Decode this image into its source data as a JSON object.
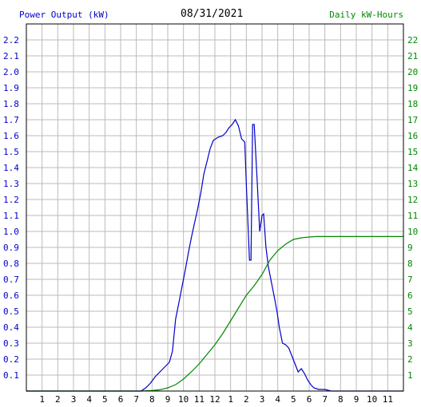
{
  "header": {
    "left_title": "Power Output (kW)",
    "date": "08/31/2021",
    "right_title": "Daily kW-Hours"
  },
  "colors": {
    "power_series": "#0000cc",
    "energy_series": "#008800",
    "grid": "#bbbbbb",
    "axis": "#000000"
  },
  "chart_data": {
    "type": "line",
    "x_axis": {
      "range": [
        0,
        24
      ],
      "tick_labels": [
        "1",
        "2",
        "3",
        "4",
        "5",
        "6",
        "7",
        "8",
        "9",
        "10",
        "11",
        "12",
        "1",
        "2",
        "3",
        "4",
        "5",
        "6",
        "7",
        "8",
        "9",
        "10",
        "11"
      ]
    },
    "y_left": {
      "label": "Power Output (kW)",
      "range": [
        0,
        2.3
      ],
      "tick_labels": [
        "0.1",
        "0.2",
        "0.3",
        "0.4",
        "0.5",
        "0.6",
        "0.7",
        "0.8",
        "0.9",
        "1.0",
        "1.1",
        "1.2",
        "1.3",
        "1.4",
        "1.5",
        "1.6",
        "1.7",
        "1.8",
        "1.9",
        "2.0",
        "2.1",
        "2.2"
      ]
    },
    "y_right": {
      "label": "Daily kW-Hours",
      "range": [
        0,
        23
      ],
      "tick_labels": [
        "1",
        "2",
        "3",
        "4",
        "5",
        "6",
        "7",
        "8",
        "9",
        "10",
        "11",
        "12",
        "13",
        "14",
        "15",
        "16",
        "17",
        "18",
        "19",
        "20",
        "21",
        "22"
      ]
    },
    "grid": true,
    "series": [
      {
        "name": "Power Output (kW)",
        "axis": "left",
        "points": [
          [
            0,
            0
          ],
          [
            7.3,
            0
          ],
          [
            7.6,
            0.02
          ],
          [
            7.9,
            0.05
          ],
          [
            8.2,
            0.09
          ],
          [
            8.5,
            0.12
          ],
          [
            8.8,
            0.15
          ],
          [
            9.1,
            0.18
          ],
          [
            9.3,
            0.25
          ],
          [
            9.5,
            0.45
          ],
          [
            9.7,
            0.55
          ],
          [
            9.9,
            0.65
          ],
          [
            10.1,
            0.75
          ],
          [
            10.3,
            0.86
          ],
          [
            10.5,
            0.96
          ],
          [
            10.7,
            1.05
          ],
          [
            10.9,
            1.14
          ],
          [
            11.1,
            1.24
          ],
          [
            11.3,
            1.36
          ],
          [
            11.5,
            1.44
          ],
          [
            11.7,
            1.52
          ],
          [
            11.9,
            1.57
          ],
          [
            12.2,
            1.59
          ],
          [
            12.5,
            1.6
          ],
          [
            12.7,
            1.62
          ],
          [
            12.9,
            1.65
          ],
          [
            13.1,
            1.67
          ],
          [
            13.3,
            1.7
          ],
          [
            13.5,
            1.66
          ],
          [
            13.7,
            1.58
          ],
          [
            13.9,
            1.56
          ],
          [
            14.0,
            1.3
          ],
          [
            14.2,
            0.82
          ],
          [
            14.3,
            0.82
          ],
          [
            14.4,
            1.67
          ],
          [
            14.5,
            1.67
          ],
          [
            14.7,
            1.3
          ],
          [
            14.85,
            1.0
          ],
          [
            15.0,
            1.1
          ],
          [
            15.1,
            1.11
          ],
          [
            15.25,
            0.9
          ],
          [
            15.4,
            0.78
          ],
          [
            15.6,
            0.68
          ],
          [
            15.8,
            0.58
          ],
          [
            15.95,
            0.5
          ],
          [
            16.1,
            0.4
          ],
          [
            16.3,
            0.3
          ],
          [
            16.5,
            0.29
          ],
          [
            16.7,
            0.27
          ],
          [
            16.9,
            0.22
          ],
          [
            17.1,
            0.17
          ],
          [
            17.3,
            0.12
          ],
          [
            17.5,
            0.14
          ],
          [
            17.7,
            0.11
          ],
          [
            17.9,
            0.07
          ],
          [
            18.1,
            0.04
          ],
          [
            18.3,
            0.02
          ],
          [
            18.6,
            0.01
          ],
          [
            19.0,
            0.01
          ],
          [
            19.4,
            0
          ],
          [
            24,
            0
          ]
        ]
      },
      {
        "name": "Daily kW-Hours",
        "axis": "right",
        "points": [
          [
            0,
            0
          ],
          [
            7.3,
            0
          ],
          [
            8,
            0.03
          ],
          [
            8.5,
            0.08
          ],
          [
            9,
            0.2
          ],
          [
            9.5,
            0.4
          ],
          [
            10,
            0.75
          ],
          [
            10.5,
            1.2
          ],
          [
            11,
            1.7
          ],
          [
            11.5,
            2.3
          ],
          [
            12,
            2.9
          ],
          [
            12.5,
            3.6
          ],
          [
            13,
            4.4
          ],
          [
            13.5,
            5.2
          ],
          [
            14,
            6.0
          ],
          [
            14.5,
            6.6
          ],
          [
            15,
            7.3
          ],
          [
            15.5,
            8.2
          ],
          [
            16,
            8.8
          ],
          [
            16.5,
            9.2
          ],
          [
            17,
            9.5
          ],
          [
            17.5,
            9.6
          ],
          [
            18,
            9.65
          ],
          [
            18.5,
            9.68
          ],
          [
            24,
            9.68
          ]
        ]
      }
    ]
  }
}
